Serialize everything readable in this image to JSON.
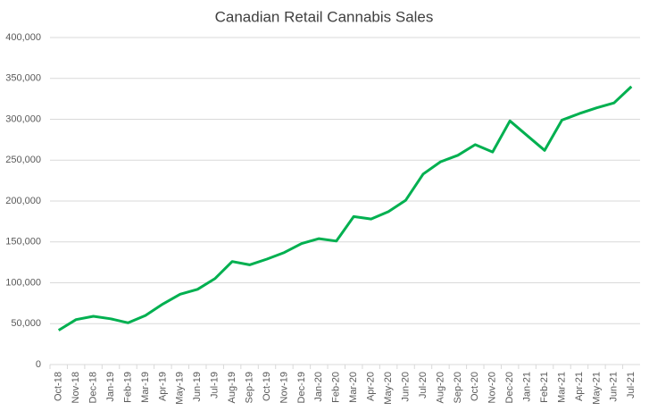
{
  "chart_data": {
    "type": "line",
    "title": "Canadian Retail Cannabis Sales",
    "categories": [
      "Oct-18",
      "Nov-18",
      "Dec-18",
      "Jan-19",
      "Feb-19",
      "Mar-19",
      "Apr-19",
      "May-19",
      "Jun-19",
      "Jul-19",
      "Aug-19",
      "Sep-19",
      "Oct-19",
      "Nov-19",
      "Dec-19",
      "Jan-20",
      "Feb-20",
      "Mar-20",
      "Apr-20",
      "May-20",
      "Jun-20",
      "Jul-20",
      "Aug-20",
      "Sep-20",
      "Oct-20",
      "Nov-20",
      "Dec-20",
      "Jan-21",
      "Feb-21",
      "Mar-21",
      "Apr-21",
      "May-21",
      "Jun-21",
      "Jul-21"
    ],
    "values": [
      42000,
      55000,
      59000,
      56000,
      51000,
      60000,
      74000,
      86000,
      92000,
      105000,
      126000,
      122000,
      129000,
      137000,
      148000,
      154000,
      151000,
      181000,
      178000,
      187000,
      201000,
      233000,
      248000,
      256000,
      269000,
      260000,
      298000,
      280000,
      262000,
      299000,
      307000,
      314000,
      320000,
      340000
    ],
    "color": "#00b050",
    "ylim": [
      0,
      400000
    ],
    "yticks": [
      0,
      {
        "value": 50000,
        "label": "50,000"
      },
      {
        "value": 100000,
        "label": "100,000"
      },
      {
        "value": 150000,
        "label": "150,000"
      },
      {
        "value": 200000,
        "label": "200,000"
      },
      {
        "value": 250000,
        "label": "250,000"
      },
      {
        "value": 300000,
        "label": "300,000"
      },
      {
        "value": 350000,
        "label": "350,000"
      },
      {
        "value": 400000,
        "label": "400,000"
      }
    ],
    "grid": true
  }
}
